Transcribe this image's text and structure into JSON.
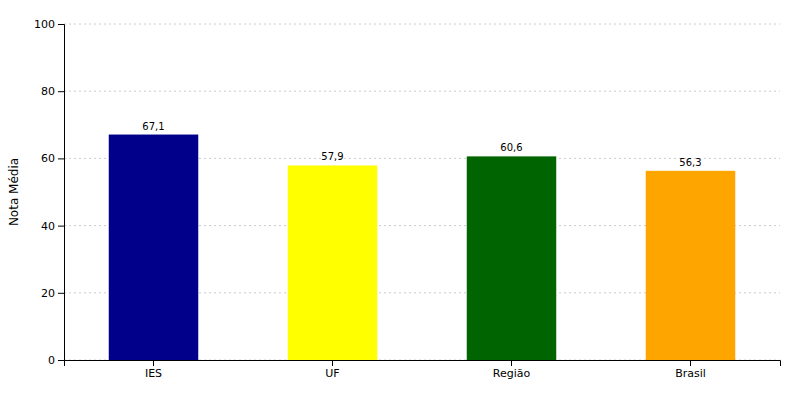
{
  "chart_data": {
    "type": "bar",
    "categories": [
      "IES",
      "UF",
      "Região",
      "Brasil"
    ],
    "values": [
      67.1,
      57.9,
      60.6,
      56.3
    ],
    "value_labels": [
      "67,1",
      "57,9",
      "60,6",
      "56,3"
    ],
    "colors": [
      "#00008B",
      "#FFFF00",
      "#006400",
      "#FFA500"
    ],
    "ylabel": "Nota Média",
    "ylim": [
      0,
      100
    ],
    "yticks": [
      0,
      20,
      40,
      60,
      80,
      100
    ],
    "grid": true,
    "data_labels": true
  }
}
